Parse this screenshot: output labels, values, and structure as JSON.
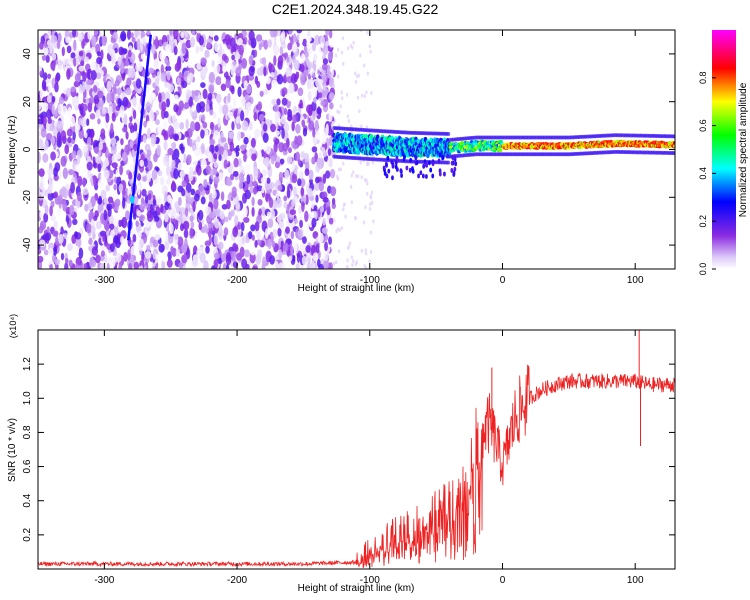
{
  "figure": {
    "title": "C2E1.2024.348.19.45.G22"
  },
  "chart_data": [
    {
      "type": "heatmap",
      "xlabel": "Height of straight line (km)",
      "ylabel": "Frequency (Hz)",
      "xlim": [
        -350,
        130
      ],
      "ylim": [
        -50,
        50
      ],
      "xticks": [
        -300,
        -200,
        -100,
        0,
        100
      ],
      "yticks": [
        -40,
        -20,
        0,
        20,
        40
      ],
      "colorbar": {
        "label": "Normalized spectral amplitude",
        "range": [
          0.0,
          1.0
        ],
        "ticks": [
          0.0,
          0.2,
          0.4,
          0.6,
          0.8
        ],
        "colormap": [
          "#ffffff",
          "#8a2be2",
          "#0000ff",
          "#00ffff",
          "#00ff00",
          "#ffff00",
          "#ff0000",
          "#ff00ff"
        ]
      },
      "features": {
        "noise_region_x": [
          -350,
          -127
        ],
        "signal_track": [
          {
            "x": -127,
            "y": 3
          },
          {
            "x": -100,
            "y": 2
          },
          {
            "x": -70,
            "y": 1
          },
          {
            "x": -40,
            "y": 0.5
          },
          {
            "x": -20,
            "y": 1.5
          },
          {
            "x": 0,
            "y": 1.5
          },
          {
            "x": 50,
            "y": 1.5
          },
          {
            "x": 85,
            "y": 2.5
          },
          {
            "x": 130,
            "y": 2
          }
        ],
        "slanted_line": [
          {
            "x": -282,
            "y": -38
          },
          {
            "x": -265,
            "y": 48
          }
        ]
      }
    },
    {
      "type": "line",
      "xlabel": "Height of straight line (km)",
      "ylabel": "SNR (10 * v/v)",
      "y_multiplier": "(x10⁴)",
      "xlim": [
        -350,
        130
      ],
      "ylim": [
        0,
        1.4
      ],
      "xticks": [
        -300,
        -200,
        -100,
        0,
        100
      ],
      "yticks": [
        0.2,
        0.4,
        0.6,
        0.8,
        1.0,
        1.2
      ],
      "color": "#ee2222",
      "series": [
        {
          "x": [
            -350,
            -300,
            -250,
            -200,
            -150,
            -110,
            -100,
            -90,
            -80,
            -70,
            -60,
            -50,
            -40,
            -30,
            -25,
            -20,
            -15,
            -10,
            -5,
            0,
            5,
            10,
            20,
            30,
            40,
            50,
            60,
            70,
            80,
            90,
            100,
            110,
            120,
            130
          ],
          "values": [
            0.03,
            0.03,
            0.03,
            0.03,
            0.03,
            0.04,
            0.1,
            0.15,
            0.2,
            0.23,
            0.26,
            0.3,
            0.35,
            0.4,
            0.55,
            0.7,
            0.8,
            0.85,
            0.75,
            0.6,
            0.75,
            0.9,
            1.0,
            1.05,
            1.08,
            1.1,
            1.1,
            1.1,
            1.1,
            1.1,
            1.1,
            1.08,
            1.08,
            1.08
          ]
        }
      ]
    }
  ]
}
